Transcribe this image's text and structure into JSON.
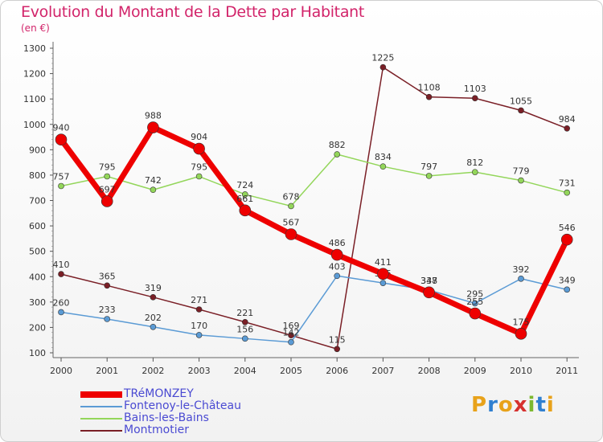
{
  "header": {
    "title": "Evolution du Montant de la Dette par Habitant",
    "subtitle": "(en €)"
  },
  "logo": {
    "text": "Proxiti",
    "colors": [
      "#e8a21a",
      "#2f7fd0",
      "#e8a21a",
      "#d6312f",
      "#7cb82f",
      "#2f7fd0",
      "#e8a21a"
    ]
  },
  "chart_data": {
    "type": "line",
    "x": [
      "2000",
      "2001",
      "2002",
      "2003",
      "2004",
      "2005",
      "2006",
      "2007",
      "2008",
      "2009",
      "2010",
      "2011"
    ],
    "ylim": [
      100,
      1300
    ],
    "yticks": [
      100,
      200,
      300,
      400,
      500,
      600,
      700,
      800,
      900,
      1000,
      1100,
      1200,
      1300
    ],
    "grid": false,
    "legend_position": "bottom-left",
    "series": [
      {
        "name": "Montmotier",
        "color": "#7a1f26",
        "width": 1.5,
        "marker_size": 3.5,
        "values": [
          410,
          365,
          319,
          271,
          221,
          169,
          115,
          1225,
          1108,
          1103,
          1055,
          984
        ]
      },
      {
        "name": "Bains-les-Bains",
        "color": "#93d65a",
        "width": 1.5,
        "marker_size": 3.5,
        "values": [
          757,
          795,
          742,
          795,
          724,
          678,
          882,
          834,
          797,
          812,
          779,
          731
        ]
      },
      {
        "name": "Fontenoy-le-Château",
        "color": "#5b9bd5",
        "width": 1.5,
        "marker_size": 3.5,
        "values": [
          260,
          233,
          202,
          170,
          156,
          142,
          403,
          375,
          347,
          295,
          392,
          349
        ]
      },
      {
        "name": "TRéMONZEY",
        "color": "#ee0000",
        "width": 7,
        "marker_size": 7,
        "values": [
          940,
          697,
          988,
          904,
          661,
          567,
          486,
          411,
          338,
          255,
          175,
          546
        ]
      }
    ]
  }
}
